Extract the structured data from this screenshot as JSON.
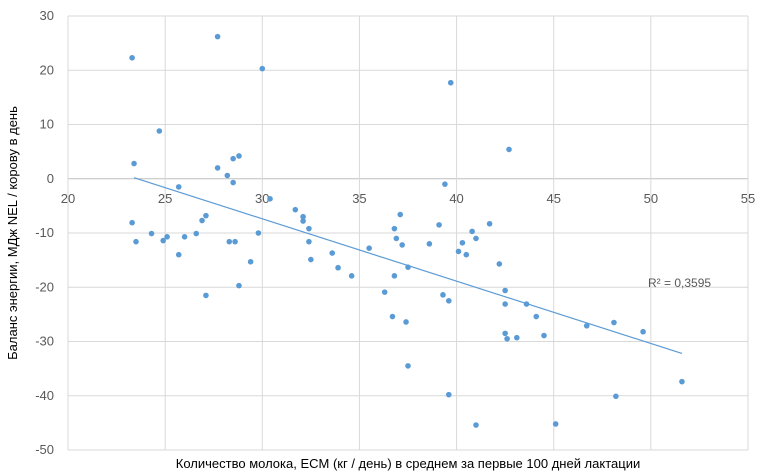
{
  "chart_data": {
    "type": "scatter",
    "title": "",
    "xlabel": "Количество молока, ECM (кг / день) в среднем за первые 100 дней лактации",
    "ylabel": "Баланс энергии, МДж NEL / корову в день",
    "xlim": [
      20,
      55
    ],
    "ylim": [
      -50,
      30
    ],
    "xticks": [
      "20",
      "25",
      "30",
      "35",
      "40",
      "45",
      "50",
      "55"
    ],
    "yticks": [
      "30",
      "20",
      "10",
      "0",
      "-10",
      "-20",
      "-30",
      "-40",
      "-50"
    ],
    "grid": true,
    "legend": "none",
    "colors": {
      "points": "#5b9bd5",
      "trendline": "#5b9bd5",
      "grid": "#d9d9d9"
    },
    "trendline": {
      "type": "linear",
      "x": [
        23.4,
        51.6
      ],
      "y": [
        0.2,
        -32.2
      ],
      "label": "R² = 0,3595"
    },
    "points": [
      [
        23.3,
        22.3
      ],
      [
        27.7,
        26.2
      ],
      [
        30.0,
        20.3
      ],
      [
        24.7,
        8.8
      ],
      [
        23.4,
        2.8
      ],
      [
        27.7,
        2.0
      ],
      [
        28.5,
        3.7
      ],
      [
        28.8,
        4.2
      ],
      [
        28.2,
        0.6
      ],
      [
        28.5,
        -0.7
      ],
      [
        25.7,
        -1.5
      ],
      [
        30.4,
        -3.7
      ],
      [
        23.3,
        -8.1
      ],
      [
        23.5,
        -11.6
      ],
      [
        24.3,
        -10.1
      ],
      [
        24.9,
        -11.4
      ],
      [
        25.1,
        -10.7
      ],
      [
        25.7,
        -14.0
      ],
      [
        26.0,
        -10.7
      ],
      [
        26.6,
        -10.1
      ],
      [
        26.9,
        -7.7
      ],
      [
        27.1,
        -6.8
      ],
      [
        28.3,
        -11.6
      ],
      [
        28.6,
        -11.6
      ],
      [
        29.4,
        -15.3
      ],
      [
        29.8,
        -10.0
      ],
      [
        27.1,
        -21.5
      ],
      [
        28.8,
        -19.7
      ],
      [
        31.7,
        -5.7
      ],
      [
        32.1,
        -7.0
      ],
      [
        32.1,
        -7.8
      ],
      [
        32.4,
        -9.2
      ],
      [
        32.4,
        -11.6
      ],
      [
        32.5,
        -14.9
      ],
      [
        33.6,
        -13.7
      ],
      [
        33.9,
        -16.4
      ],
      [
        34.6,
        -17.9
      ],
      [
        35.5,
        -12.8
      ],
      [
        36.3,
        -20.9
      ],
      [
        36.7,
        -25.4
      ],
      [
        36.8,
        -17.9
      ],
      [
        36.8,
        -9.2
      ],
      [
        36.9,
        -11.0
      ],
      [
        37.1,
        -6.6
      ],
      [
        37.2,
        -12.2
      ],
      [
        37.4,
        -26.4
      ],
      [
        37.5,
        -16.3
      ],
      [
        37.5,
        -34.5
      ],
      [
        38.6,
        -12.0
      ],
      [
        39.1,
        -8.5
      ],
      [
        39.3,
        -21.4
      ],
      [
        39.4,
        -1.0
      ],
      [
        39.6,
        -22.5
      ],
      [
        39.6,
        -39.8
      ],
      [
        39.7,
        17.7
      ],
      [
        40.1,
        -13.4
      ],
      [
        40.3,
        -11.8
      ],
      [
        40.5,
        -14.0
      ],
      [
        40.8,
        -9.7
      ],
      [
        41.0,
        -11.0
      ],
      [
        41.0,
        -45.4
      ],
      [
        41.7,
        -8.3
      ],
      [
        42.2,
        -15.7
      ],
      [
        42.5,
        -20.6
      ],
      [
        42.5,
        -23.1
      ],
      [
        42.5,
        -28.5
      ],
      [
        42.6,
        -29.5
      ],
      [
        42.7,
        5.4
      ],
      [
        43.1,
        -29.3
      ],
      [
        43.6,
        -23.1
      ],
      [
        44.1,
        -25.4
      ],
      [
        44.5,
        -28.9
      ],
      [
        45.1,
        -45.2
      ],
      [
        46.7,
        -27.1
      ],
      [
        48.1,
        -26.5
      ],
      [
        48.2,
        -40.1
      ],
      [
        49.6,
        -28.2
      ],
      [
        51.6,
        -37.4
      ]
    ]
  }
}
